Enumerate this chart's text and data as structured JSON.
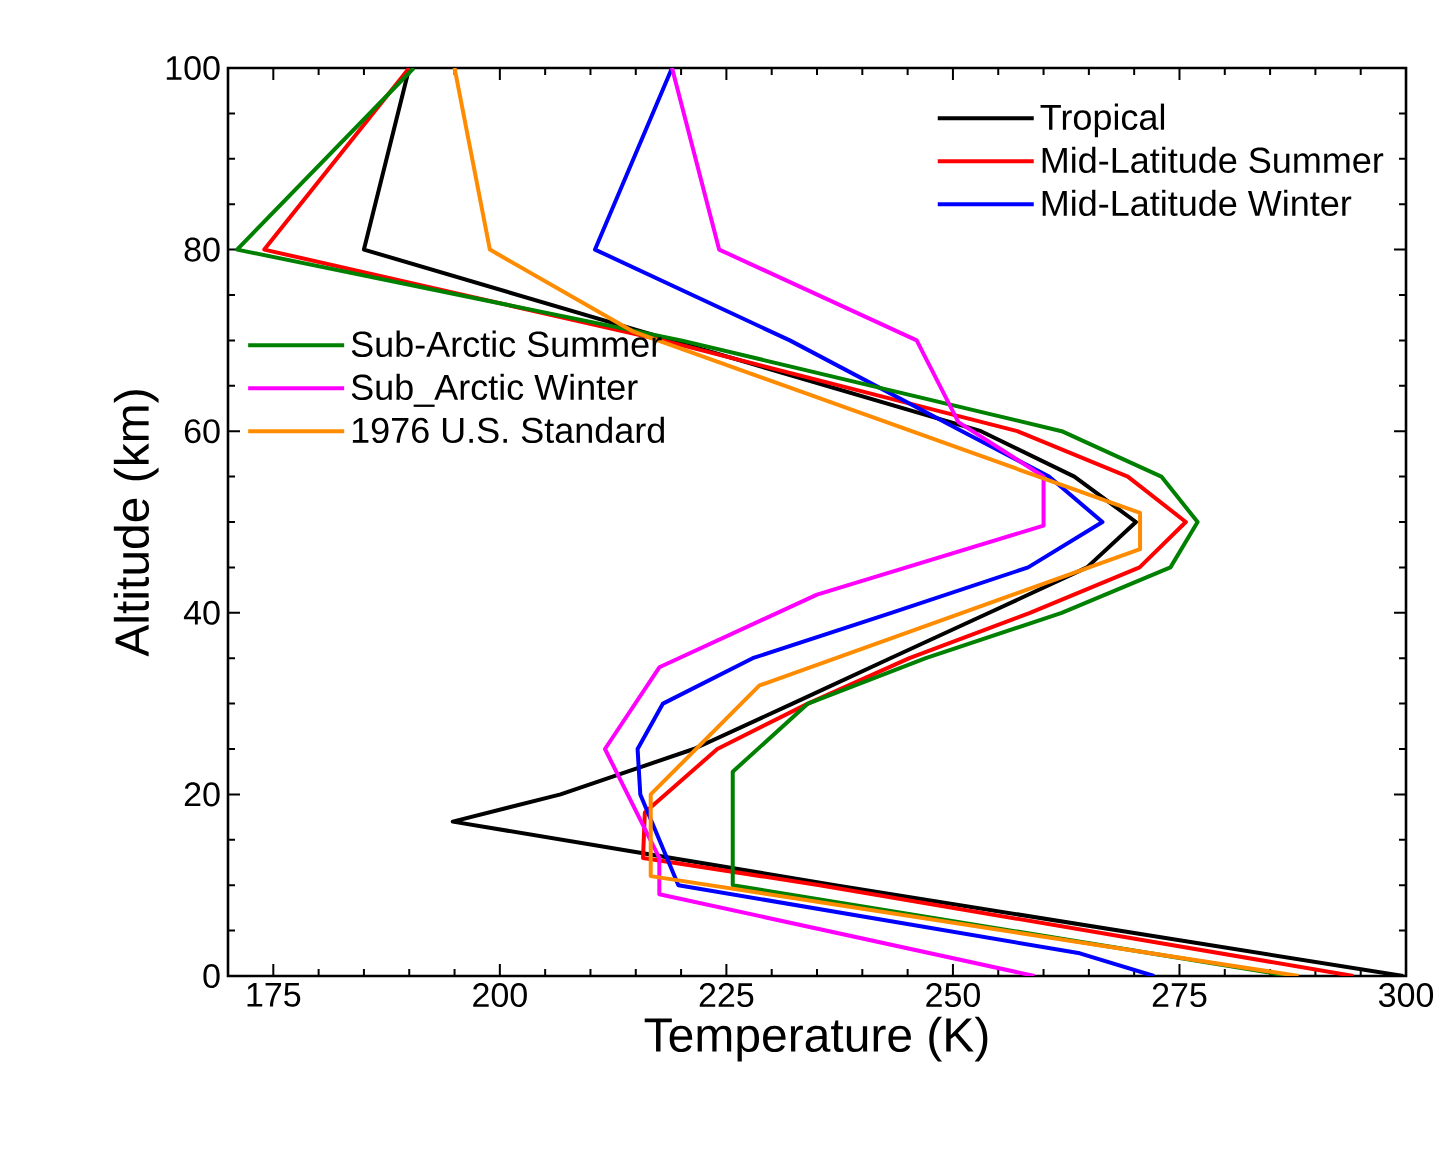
{
  "chart_data": {
    "type": "line",
    "xlabel": "Temperature (K)",
    "ylabel": "Altitude (km)",
    "xlim": [
      170,
      300
    ],
    "xticks": [
      175,
      200,
      225,
      250,
      275,
      300
    ],
    "ylim": [
      0,
      100
    ],
    "yticks": [
      0,
      20,
      40,
      60,
      80,
      100
    ],
    "legend": "top right",
    "marker": "none",
    "line_style": "solid",
    "series": [
      {
        "name": "Tropical",
        "color": "#000000",
        "x": [
          299.7,
          237,
          194.8,
          206.7,
          221.4,
          232.3,
          243.1,
          254,
          264.8,
          270.2,
          263.4,
          253.1,
          219,
          185,
          190
        ],
        "values": [
          0,
          10,
          17,
          20,
          25,
          30,
          35,
          40,
          45,
          50,
          55,
          60,
          70,
          80,
          100
        ]
      },
      {
        "name": "Mid-Latitude Summer",
        "color": "#ff0000",
        "x": [
          294.2,
          235.3,
          215.8,
          216,
          224,
          234,
          245.2,
          258.5,
          270.6,
          275.7,
          269.3,
          257.1,
          218,
          174,
          190
        ],
        "values": [
          0,
          10,
          13,
          18,
          25,
          30,
          35,
          40,
          45,
          50,
          55,
          60,
          70,
          80,
          100
        ]
      },
      {
        "name": "Mid-Latitude Winter",
        "color": "#0000ff",
        "x": [
          272.2,
          264,
          219.7,
          215.5,
          215.2,
          218,
          227.9,
          243.2,
          258.3,
          266.5,
          260.6,
          251,
          232,
          210.5,
          219
        ],
        "values": [
          0,
          2.5,
          10,
          20,
          25,
          30,
          35,
          40,
          45,
          50,
          55,
          60,
          70,
          80,
          100
        ]
      },
      {
        "name": "Sub-Arctic Summer",
        "color": "#008000",
        "x": [
          287.2,
          225.7,
          225.7,
          234,
          247,
          262,
          274,
          277,
          273,
          262,
          220,
          171,
          190.5
        ],
        "values": [
          0,
          10,
          22.5,
          30,
          35,
          40,
          45,
          50,
          55,
          60,
          70,
          80,
          100
        ]
      },
      {
        "name": "Sub_Arctic Winter",
        "color": "#ff00ff",
        "x": [
          259,
          217.6,
          217.6,
          211.6,
          217.6,
          235,
          260,
          260,
          250.6,
          246,
          224.2,
          219
        ],
        "values": [
          0,
          9,
          13,
          25,
          34,
          42,
          49.6,
          55,
          61,
          70,
          80,
          100
        ]
      },
      {
        "name": "1976 U.S. Standard",
        "color": "#ff8c00",
        "x": [
          288.15,
          216.65,
          216.65,
          228.65,
          270.65,
          270.65,
          214.65,
          198.9,
          195
        ],
        "values": [
          0,
          11,
          20,
          32,
          47,
          51,
          71,
          80,
          100
        ]
      }
    ]
  }
}
